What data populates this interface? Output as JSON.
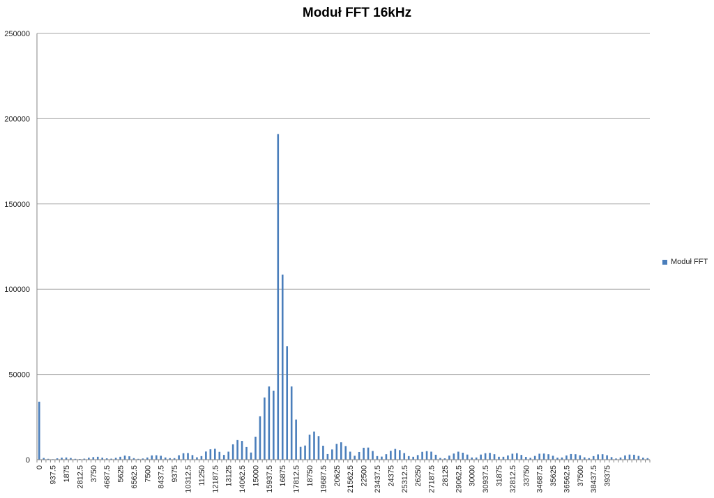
{
  "chart_data": {
    "type": "bar",
    "title": "Moduł FFT 16kHz",
    "xlabel": "",
    "ylabel": "",
    "ylim": [
      0,
      250000
    ],
    "yticks": [
      "0",
      "50000",
      "100000",
      "150000",
      "200000",
      "250000"
    ],
    "grid": true,
    "legend_position": "right",
    "bar_color": "#4a7ebb",
    "x_tick_labels": [
      "0",
      "937.5",
      "1875",
      "2812.5",
      "3750",
      "4687.5",
      "5625",
      "6562.5",
      "7500",
      "8437.5",
      "9375",
      "10312.5",
      "11250",
      "12187.5",
      "13125",
      "14062.5",
      "15000",
      "15937.5",
      "16875",
      "17812.5",
      "18750",
      "19687.5",
      "20625",
      "21562.5",
      "22500",
      "23437.5",
      "24375",
      "25312.5",
      "26250",
      "27187.5",
      "28125",
      "29062.5",
      "30000",
      "30937.5",
      "31875",
      "32812.5",
      "33750",
      "34687.5",
      "35625",
      "36562.5",
      "37500",
      "38437.5",
      "39375"
    ],
    "bin_width": 312.5,
    "series": [
      {
        "name": "Moduł FFT",
        "x_start": 0,
        "x_step": 312.5,
        "values": [
          34000,
          1000,
          500,
          300,
          800,
          1200,
          1300,
          1000,
          500,
          400,
          600,
          1200,
          1500,
          1700,
          1200,
          800,
          600,
          1100,
          1700,
          2400,
          2000,
          900,
          500,
          700,
          1300,
          2500,
          2600,
          2300,
          1300,
          900,
          900,
          2600,
          3800,
          3900,
          2700,
          1400,
          2100,
          4800,
          6100,
          6400,
          4600,
          2800,
          4700,
          9000,
          11500,
          11000,
          7400,
          4200,
          13500,
          25500,
          36500,
          43000,
          40500,
          191000,
          108500,
          66500,
          43000,
          23500,
          7500,
          8300,
          14700,
          16500,
          13800,
          8200,
          3300,
          6000,
          9300,
          10200,
          8000,
          4700,
          2300,
          4500,
          7000,
          7100,
          5100,
          2100,
          1800,
          3200,
          5200,
          6300,
          5600,
          3900,
          2100,
          1700,
          2700,
          4600,
          5000,
          4700,
          2900,
          1000,
          800,
          2400,
          3600,
          4700,
          4100,
          3000,
          1300,
          1300,
          3000,
          3800,
          4000,
          3200,
          1700,
          1700,
          2500,
          3500,
          3800,
          2800,
          1600,
          1100,
          2200,
          3500,
          3600,
          3200,
          2300,
          1200,
          1300,
          2500,
          3300,
          3200,
          2600,
          1400,
          900,
          2100,
          3100,
          3200,
          2600,
          1500,
          700,
          1300,
          2500,
          3000,
          2900,
          2200,
          1200,
          900
        ]
      }
    ]
  },
  "legend": {
    "items": [
      {
        "label": "Moduł FFT",
        "color": "#4a7ebb"
      }
    ]
  }
}
